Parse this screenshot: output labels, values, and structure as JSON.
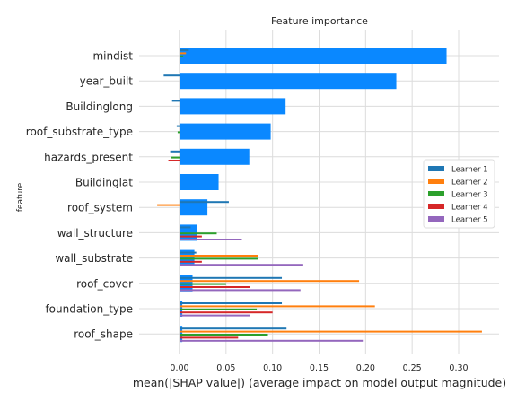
{
  "chart_data": {
    "type": "bar",
    "orientation": "horizontal",
    "title": "Feature importance",
    "xlabel": "mean(|SHAP value|) (average impact on model output magnitude)",
    "ylabel": "feature",
    "xlim": [
      -0.045,
      0.34
    ],
    "xticks": [
      0.0,
      0.05,
      0.1,
      0.15,
      0.2,
      0.25,
      0.3
    ],
    "xtick_labels": [
      "0.00",
      "0.05",
      "0.10",
      "0.15",
      "0.20",
      "0.25",
      "0.30"
    ],
    "grid": true,
    "legend_position": "right",
    "categories": [
      "mindist",
      "year_built",
      "Buildinglong",
      "roof_substrate_type",
      "hazards_present",
      "Buildinglat",
      "roof_system",
      "wall_structure",
      "wall_substrate",
      "roof_cover",
      "foundation_type",
      "roof_shape"
    ],
    "main_bar": {
      "color": "#0a88ff",
      "values": [
        0.287,
        0.233,
        0.114,
        0.098,
        0.075,
        0.042,
        0.03,
        0.019,
        0.016,
        0.014,
        0.003,
        0.003
      ]
    },
    "series": [
      {
        "name": "Learner 1",
        "color": "#1f77b4",
        "values": [
          0.01,
          -0.017,
          -0.008,
          -0.003,
          -0.01,
          0.0,
          0.053,
          0.012,
          0.018,
          0.11,
          0.11,
          0.115
        ]
      },
      {
        "name": "Learner 2",
        "color": "#ff7f0e",
        "values": [
          0.007,
          0.0,
          0.0,
          0.0,
          0.0,
          0.0,
          -0.024,
          0.0,
          0.084,
          0.193,
          0.21,
          0.325
        ]
      },
      {
        "name": "Learner 3",
        "color": "#2ca02c",
        "values": [
          0.004,
          0.0,
          0.0,
          -0.002,
          -0.009,
          0.0,
          0.0,
          0.04,
          0.084,
          0.05,
          0.083,
          0.095
        ]
      },
      {
        "name": "Learner 4",
        "color": "#d62728",
        "values": [
          0.0,
          0.0,
          0.0,
          0.0,
          -0.012,
          0.0,
          0.0,
          0.024,
          0.024,
          0.076,
          0.1,
          0.063
        ]
      },
      {
        "name": "Learner 5",
        "color": "#9467bd",
        "values": [
          0.0,
          0.0,
          0.0,
          0.0,
          0.0,
          0.0,
          0.0,
          0.067,
          0.133,
          0.13,
          0.076,
          0.197
        ]
      }
    ]
  }
}
